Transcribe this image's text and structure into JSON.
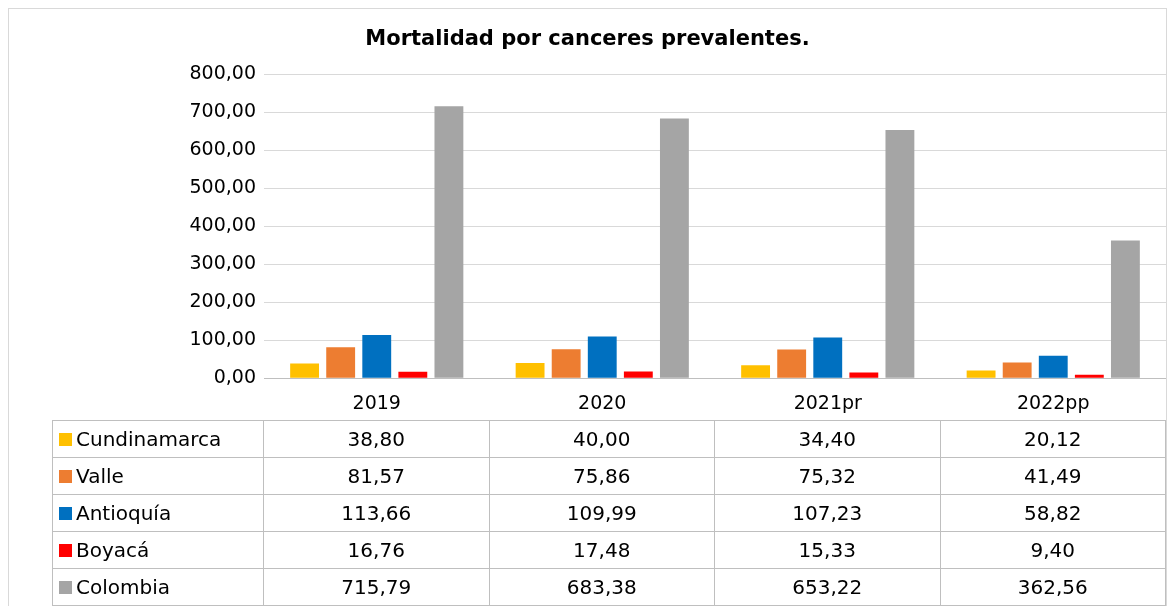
{
  "chart_data": {
    "type": "bar",
    "title": "Mortalidad por canceres prevalentes.",
    "categories": [
      "2019",
      "2020",
      "2021pr",
      "2022pp"
    ],
    "series": [
      {
        "name": "Cundinamarca",
        "color": "#ffc000",
        "values": [
          38.8,
          40.0,
          34.4,
          20.12
        ],
        "value_labels": [
          "38,80",
          "40,00",
          "34,40",
          "20,12"
        ]
      },
      {
        "name": "Valle",
        "color": "#ed7d31",
        "values": [
          81.57,
          75.86,
          75.32,
          41.49
        ],
        "value_labels": [
          "81,57",
          "75,86",
          "75,32",
          "41,49"
        ]
      },
      {
        "name": "Antioquía",
        "color": "#0070c0",
        "values": [
          113.66,
          109.99,
          107.23,
          58.82
        ],
        "value_labels": [
          "113,66",
          "109,99",
          "107,23",
          "58,82"
        ]
      },
      {
        "name": "Boyacá",
        "color": "#ff0000",
        "values": [
          16.76,
          17.48,
          15.33,
          9.4
        ],
        "value_labels": [
          "16,76",
          "17,48",
          "15,33",
          "9,40"
        ]
      },
      {
        "name": "Colombia",
        "color": "#a5a5a5",
        "values": [
          715.79,
          683.38,
          653.22,
          362.56
        ],
        "value_labels": [
          "715,79",
          "683,38",
          "653,22",
          "362,56"
        ]
      }
    ],
    "ylim": [
      0,
      800
    ],
    "yticks": [
      {
        "value": 0,
        "label": "0,00"
      },
      {
        "value": 100,
        "label": "100,00"
      },
      {
        "value": 200,
        "label": "200,00"
      },
      {
        "value": 300,
        "label": "300,00"
      },
      {
        "value": 400,
        "label": "400,00"
      },
      {
        "value": 500,
        "label": "500,00"
      },
      {
        "value": 600,
        "label": "600,00"
      },
      {
        "value": 700,
        "label": "700,00"
      },
      {
        "value": 800,
        "label": "800,00"
      }
    ],
    "grid": "y",
    "legend": "bottom"
  }
}
